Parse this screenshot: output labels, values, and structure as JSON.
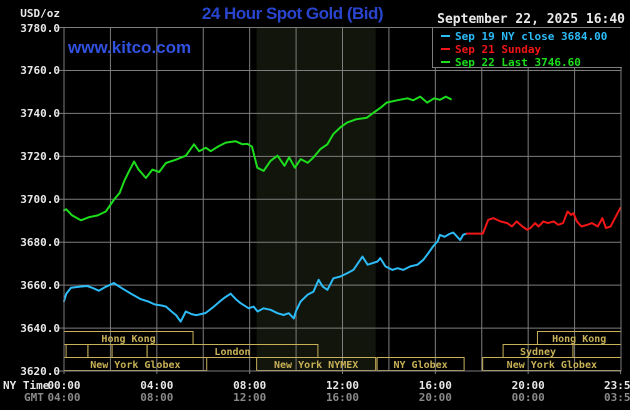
{
  "header": {
    "y_unit": "USD/oz",
    "title": "24 Hour Spot Gold (Bid)",
    "date": "September 22, 2025 16:40"
  },
  "watermark": "www.kitco.com",
  "legend": [
    {
      "label": "Sep 19 NY close 3684.00",
      "color": "#2cbcf7"
    },
    {
      "label": "Sep 21 Sunday",
      "color": "#f21616"
    },
    {
      "label": "Sep 22 Last 3746.60",
      "color": "#1cde1c"
    }
  ],
  "axis": {
    "ny_time_label": "NY Time",
    "gmt_label": "GMT",
    "x_ticks": [
      {
        "hour": 0,
        "ny": "00:00",
        "gmt": "04:00"
      },
      {
        "hour": 4,
        "ny": "04:00",
        "gmt": "08:00"
      },
      {
        "hour": 8,
        "ny": "08:00",
        "gmt": "12:00"
      },
      {
        "hour": 12,
        "ny": "12:00",
        "gmt": "16:00"
      },
      {
        "hour": 16,
        "ny": "16:00",
        "gmt": "20:00"
      },
      {
        "hour": 20,
        "ny": "20:00",
        "gmt": "00:00"
      },
      {
        "hour": 23.98,
        "ny": "23:59",
        "gmt": "03:59"
      }
    ],
    "y_ticks": [
      {
        "label": "3780.0",
        "value": 3780
      },
      {
        "label": "3760.0",
        "value": 3760
      },
      {
        "label": "3740.0",
        "value": 3740
      },
      {
        "label": "3720.0",
        "value": 3720
      },
      {
        "label": "3700.0",
        "value": 3700
      },
      {
        "label": "3680.0",
        "value": 3680
      },
      {
        "label": "3660.0",
        "value": 3660
      },
      {
        "label": "3640.0",
        "value": 3640
      },
      {
        "label": "3620.0",
        "value": 3620
      }
    ]
  },
  "sessions": {
    "color": "#c8b158",
    "rows": [
      [
        {
          "start": 0,
          "end": 5.56,
          "label": "Hong Kong"
        },
        {
          "start": 20.4,
          "end": 24,
          "label": "Hong Kong"
        }
      ],
      [
        {
          "start": 0.09,
          "end": 1.03,
          "label": ""
        },
        {
          "start": 1.03,
          "end": 2.07,
          "label": ""
        },
        {
          "start": 2.07,
          "end": 3.58,
          "label": ""
        },
        {
          "start": 3.58,
          "end": 10.94,
          "label": "London"
        },
        {
          "start": 18.92,
          "end": 21.93,
          "label": "Sydney"
        },
        {
          "start": 21.93,
          "end": 24,
          "label": ""
        }
      ],
      [
        {
          "start": 0,
          "end": 6.15,
          "label": "New York Globex"
        },
        {
          "start": 8.3,
          "end": 13.43,
          "label": "New York NYMEX"
        },
        {
          "start": 13.49,
          "end": 17.24,
          "label": "NY Globex"
        },
        {
          "start": 18.04,
          "end": 24,
          "label": "New York Globex"
        }
      ]
    ]
  },
  "chart_data": {
    "type": "line",
    "title": "24 Hour Spot Gold (Bid)",
    "xlabel": "NY Time (hours)",
    "ylabel": "USD/oz",
    "x_range": [
      0,
      24
    ],
    "ylim": [
      3620,
      3780
    ],
    "grid": {
      "x_step_hours": 2,
      "y_step": 20,
      "on": true
    },
    "shaded_span_hours": [
      8.3,
      13.43
    ],
    "series": [
      {
        "name": "Sep 19 NY close 3684.00",
        "color": "#2cbcf7",
        "close": 3684.0,
        "points": [
          [
            0,
            3652.5
          ],
          [
            0.1,
            3656
          ],
          [
            0.3,
            3658.8
          ],
          [
            0.7,
            3659.3
          ],
          [
            1.0,
            3659.6
          ],
          [
            1.25,
            3658.6
          ],
          [
            1.5,
            3657.4
          ],
          [
            1.8,
            3659.2
          ],
          [
            2.15,
            3661
          ],
          [
            2.5,
            3658.5
          ],
          [
            2.97,
            3655.5
          ],
          [
            3.3,
            3653.5
          ],
          [
            3.65,
            3652.3
          ],
          [
            3.9,
            3651
          ],
          [
            4.2,
            3650.5
          ],
          [
            4.4,
            3650
          ],
          [
            4.6,
            3648
          ],
          [
            4.82,
            3646.1
          ],
          [
            5.03,
            3643
          ],
          [
            5.25,
            3647.7
          ],
          [
            5.5,
            3646.5
          ],
          [
            5.7,
            3646
          ],
          [
            5.9,
            3646.5
          ],
          [
            6.1,
            3647
          ],
          [
            6.4,
            3649.5
          ],
          [
            6.7,
            3652.3
          ],
          [
            6.9,
            3654
          ],
          [
            7.18,
            3656
          ],
          [
            7.4,
            3653.5
          ],
          [
            7.61,
            3651.6
          ],
          [
            7.96,
            3649.2
          ],
          [
            8.17,
            3650
          ],
          [
            8.34,
            3647.7
          ],
          [
            8.6,
            3649.2
          ],
          [
            8.9,
            3648.5
          ],
          [
            9.2,
            3646.9
          ],
          [
            9.46,
            3646.1
          ],
          [
            9.68,
            3646.9
          ],
          [
            9.9,
            3644.5
          ],
          [
            10.0,
            3648
          ],
          [
            10.19,
            3652.3
          ],
          [
            10.49,
            3655.5
          ],
          [
            10.75,
            3657
          ],
          [
            10.97,
            3662.5
          ],
          [
            11.14,
            3659.4
          ],
          [
            11.35,
            3657.8
          ],
          [
            11.61,
            3663.2
          ],
          [
            11.91,
            3664
          ],
          [
            12.21,
            3665.6
          ],
          [
            12.47,
            3667.1
          ],
          [
            12.86,
            3673.3
          ],
          [
            13.08,
            3669.5
          ],
          [
            13.29,
            3670.2
          ],
          [
            13.51,
            3671
          ],
          [
            13.63,
            3672.6
          ],
          [
            13.85,
            3668.7
          ],
          [
            14.15,
            3667.1
          ],
          [
            14.37,
            3667.9
          ],
          [
            14.62,
            3667.1
          ],
          [
            14.92,
            3668.7
          ],
          [
            15.23,
            3669.5
          ],
          [
            15.48,
            3671.8
          ],
          [
            15.7,
            3674.9
          ],
          [
            15.9,
            3678
          ],
          [
            16.1,
            3680.5
          ],
          [
            16.2,
            3683.4
          ],
          [
            16.4,
            3682.5
          ],
          [
            16.6,
            3683.8
          ],
          [
            16.77,
            3684.5
          ],
          [
            16.9,
            3683
          ],
          [
            17.07,
            3681
          ],
          [
            17.2,
            3683.5
          ],
          [
            17.35,
            3684
          ]
        ]
      },
      {
        "name": "Sep 21 Sunday",
        "color": "#f21616",
        "points": [
          [
            17.35,
            3684
          ],
          [
            18.05,
            3684
          ],
          [
            18.28,
            3690.4
          ],
          [
            18.5,
            3691.2
          ],
          [
            18.8,
            3689.7
          ],
          [
            19.1,
            3688.9
          ],
          [
            19.3,
            3687.3
          ],
          [
            19.5,
            3689.7
          ],
          [
            19.75,
            3687.3
          ],
          [
            19.95,
            3685.8
          ],
          [
            20.1,
            3686.6
          ],
          [
            20.3,
            3688.9
          ],
          [
            20.45,
            3687.3
          ],
          [
            20.65,
            3689.7
          ],
          [
            20.85,
            3688.9
          ],
          [
            21.1,
            3689.7
          ],
          [
            21.3,
            3688.1
          ],
          [
            21.5,
            3688.9
          ],
          [
            21.7,
            3694.3
          ],
          [
            21.85,
            3692.7
          ],
          [
            21.95,
            3693.5
          ],
          [
            22.1,
            3689.7
          ],
          [
            22.3,
            3687.3
          ],
          [
            22.55,
            3688.1
          ],
          [
            22.75,
            3688.9
          ],
          [
            23.0,
            3687.3
          ],
          [
            23.2,
            3691.2
          ],
          [
            23.35,
            3686.6
          ],
          [
            23.55,
            3687.3
          ],
          [
            23.7,
            3690.4
          ],
          [
            23.85,
            3693.5
          ],
          [
            23.98,
            3696
          ]
        ]
      },
      {
        "name": "Sep 22 Last 3746.60",
        "color": "#1cde1c",
        "last": 3746.6,
        "points": [
          [
            0,
            3694.8
          ],
          [
            0.1,
            3695.3
          ],
          [
            0.35,
            3692.5
          ],
          [
            0.73,
            3690.2
          ],
          [
            1.09,
            3691.7
          ],
          [
            1.45,
            3692.5
          ],
          [
            1.8,
            3694.3
          ],
          [
            2.16,
            3699.9
          ],
          [
            2.4,
            3703
          ],
          [
            2.6,
            3708.6
          ],
          [
            2.8,
            3713
          ],
          [
            3.02,
            3717.6
          ],
          [
            3.2,
            3714
          ],
          [
            3.53,
            3709.9
          ],
          [
            3.81,
            3713.8
          ],
          [
            4.1,
            3712.7
          ],
          [
            4.39,
            3716.9
          ],
          [
            4.82,
            3718.4
          ],
          [
            5.25,
            3720.3
          ],
          [
            5.6,
            3725.6
          ],
          [
            5.82,
            3722.4
          ],
          [
            6.11,
            3724
          ],
          [
            6.32,
            3722.4
          ],
          [
            6.68,
            3724.8
          ],
          [
            6.97,
            3726.4
          ],
          [
            7.4,
            3727
          ],
          [
            7.69,
            3725.6
          ],
          [
            7.9,
            3725.8
          ],
          [
            8.1,
            3724.5
          ],
          [
            8.33,
            3714.7
          ],
          [
            8.6,
            3713.2
          ],
          [
            8.9,
            3717.9
          ],
          [
            9.2,
            3720.3
          ],
          [
            9.5,
            3715.6
          ],
          [
            9.7,
            3719.5
          ],
          [
            9.95,
            3714.7
          ],
          [
            10.2,
            3718.7
          ],
          [
            10.5,
            3717
          ],
          [
            10.75,
            3719.5
          ],
          [
            11.05,
            3723.4
          ],
          [
            11.35,
            3725.6
          ],
          [
            11.6,
            3730.3
          ],
          [
            11.9,
            3733.4
          ],
          [
            12.2,
            3735.7
          ],
          [
            12.6,
            3737.3
          ],
          [
            13.05,
            3738
          ],
          [
            13.35,
            3740.4
          ],
          [
            13.65,
            3742.7
          ],
          [
            13.9,
            3745
          ],
          [
            14.35,
            3746.1
          ],
          [
            14.8,
            3747
          ],
          [
            15.05,
            3746.1
          ],
          [
            15.35,
            3747.8
          ],
          [
            15.65,
            3745
          ],
          [
            15.95,
            3747
          ],
          [
            16.2,
            3746.3
          ],
          [
            16.45,
            3747.8
          ],
          [
            16.67,
            3746.6
          ]
        ]
      }
    ]
  }
}
